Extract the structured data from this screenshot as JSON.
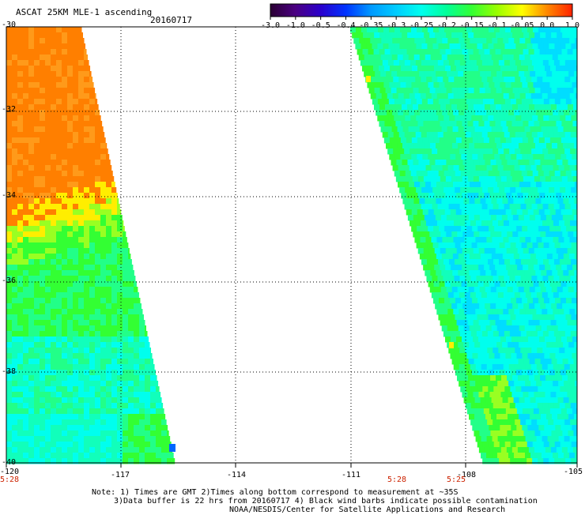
{
  "header": {
    "title": "ASCAT 25KM MLE-1 ascending",
    "date": "20160717"
  },
  "colorbar": {
    "labels": [
      "-3.0",
      "-1.0",
      "-0.5",
      "-0.4",
      "-0.35",
      "-0.3",
      "-0.25",
      "-0.2",
      "-0.15",
      "-0.1",
      "-0.05",
      "0.0",
      "1.0"
    ],
    "colors": [
      "#2a0033",
      "#4b0082",
      "#2a00cc",
      "#0033ff",
      "#0099ff",
      "#00ccff",
      "#00ffee",
      "#00ff99",
      "#33ff33",
      "#99ff00",
      "#ffff00",
      "#ff8800",
      "#ff2200"
    ]
  },
  "map": {
    "lat_labels": [
      "-30",
      "-32",
      "-34",
      "-36",
      "-38",
      "-40"
    ],
    "lon_labels": [
      "-120",
      "-117",
      "-114",
      "-111",
      "-108",
      "-105"
    ],
    "time_labels": [
      "5:28",
      "5:28",
      "5:25"
    ],
    "swath_colors": {
      "orange": "#ff7f00",
      "orange_light": "#ff9a1a",
      "yellow": "#ffee00",
      "green_yellow": "#99ff22",
      "green": "#33ff33",
      "green_cyan": "#22ff88",
      "cyan_green": "#11ffbb",
      "cyan": "#00ffee",
      "cyan_blue": "#00ddff",
      "blue": "#0066ff"
    }
  },
  "notes": {
    "line1": "Note: 1) Times are GMT 2)Times along bottom correspond to measurement at ~35S",
    "line2": "3)Data buffer is 22 hrs from 20160717 4) Black wind barbs indicate possible contamination",
    "line3": "NOAA/NESDIS/Center for Satellite Applications and Research"
  }
}
